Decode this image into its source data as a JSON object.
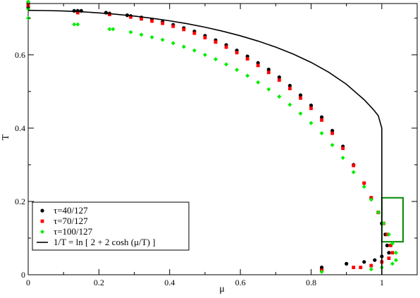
{
  "chart_data": {
    "type": "scatter",
    "xlabel": "μ",
    "ylabel": "T",
    "xlim": [
      0,
      1.1
    ],
    "ylim": [
      0,
      0.74
    ],
    "x_ticks": [
      0,
      0.2,
      0.4,
      0.6,
      0.8,
      1
    ],
    "x_tick_labels": [
      "0",
      "0.2",
      "0.4",
      "0.6",
      "0.8",
      "1"
    ],
    "y_ticks": [
      0,
      0.2,
      0.4,
      0.6
    ],
    "y_tick_labels": [
      "0",
      "0.2",
      "0.4",
      "0.6"
    ],
    "grid": false,
    "legend_position": "bottom-left",
    "series": [
      {
        "name": "τ=40/127",
        "marker": "circle",
        "color": "#000000",
        "points": [
          [
            0,
            0.74
          ],
          [
            0,
            0.73
          ],
          [
            0.13,
            0.72
          ],
          [
            0.14,
            0.72
          ],
          [
            0.15,
            0.72
          ],
          [
            0.22,
            0.715
          ],
          [
            0.23,
            0.713
          ],
          [
            0.28,
            0.708
          ],
          [
            0.29,
            0.706
          ],
          [
            0.32,
            0.702
          ],
          [
            0.35,
            0.696
          ],
          [
            0.38,
            0.69
          ],
          [
            0.41,
            0.682
          ],
          [
            0.44,
            0.673
          ],
          [
            0.47,
            0.664
          ],
          [
            0.5,
            0.652
          ],
          [
            0.53,
            0.64
          ],
          [
            0.56,
            0.627
          ],
          [
            0.59,
            0.612
          ],
          [
            0.62,
            0.596
          ],
          [
            0.65,
            0.578
          ],
          [
            0.68,
            0.56
          ],
          [
            0.71,
            0.539
          ],
          [
            0.74,
            0.516
          ],
          [
            0.77,
            0.49
          ],
          [
            0.8,
            0.462
          ],
          [
            0.83,
            0.43
          ],
          [
            0.86,
            0.393
          ],
          [
            0.89,
            0.35
          ],
          [
            0.92,
            0.3
          ],
          [
            0.95,
            0.25
          ],
          [
            0.97,
            0.21
          ],
          [
            0.99,
            0.17
          ],
          [
            1.0,
            0.14
          ],
          [
            1.01,
            0.11
          ],
          [
            1.015,
            0.08
          ],
          [
            1.02,
            0.06
          ],
          [
            1.0,
            0.05
          ],
          [
            0.98,
            0.04
          ],
          [
            0.95,
            0.035
          ],
          [
            0.9,
            0.03
          ],
          [
            0.83,
            0.02
          ],
          [
            0.83,
            0.015
          ]
        ]
      },
      {
        "name": "τ=70/127",
        "marker": "square",
        "color": "#ff0000",
        "points": [
          [
            0,
            0.735
          ],
          [
            0.14,
            0.715
          ],
          [
            0.23,
            0.71
          ],
          [
            0.29,
            0.703
          ],
          [
            0.32,
            0.698
          ],
          [
            0.35,
            0.692
          ],
          [
            0.38,
            0.686
          ],
          [
            0.41,
            0.678
          ],
          [
            0.44,
            0.669
          ],
          [
            0.47,
            0.659
          ],
          [
            0.5,
            0.647
          ],
          [
            0.53,
            0.635
          ],
          [
            0.56,
            0.621
          ],
          [
            0.59,
            0.606
          ],
          [
            0.62,
            0.589
          ],
          [
            0.65,
            0.571
          ],
          [
            0.68,
            0.552
          ],
          [
            0.71,
            0.531
          ],
          [
            0.74,
            0.508
          ],
          [
            0.77,
            0.482
          ],
          [
            0.8,
            0.454
          ],
          [
            0.83,
            0.422
          ],
          [
            0.86,
            0.386
          ],
          [
            0.89,
            0.345
          ],
          [
            0.92,
            0.298
          ],
          [
            0.95,
            0.25
          ],
          [
            0.97,
            0.21
          ],
          [
            0.99,
            0.17
          ],
          [
            1.005,
            0.14
          ],
          [
            1.015,
            0.11
          ],
          [
            1.025,
            0.08
          ],
          [
            1.03,
            0.06
          ],
          [
            1.02,
            0.045
          ],
          [
            1.0,
            0.035
          ],
          [
            0.97,
            0.025
          ],
          [
            0.94,
            0.02
          ],
          [
            0.92,
            0.02
          ],
          [
            0.83,
            0.012
          ]
        ]
      },
      {
        "name": "τ=100/127",
        "marker": "diamond",
        "color": "#00ee00",
        "points": [
          [
            0,
            0.745
          ],
          [
            0,
            0.725
          ],
          [
            0,
            0.7
          ],
          [
            0.13,
            0.683
          ],
          [
            0.14,
            0.683
          ],
          [
            0.23,
            0.67
          ],
          [
            0.24,
            0.67
          ],
          [
            0.29,
            0.662
          ],
          [
            0.32,
            0.655
          ],
          [
            0.35,
            0.648
          ],
          [
            0.38,
            0.641
          ],
          [
            0.41,
            0.632
          ],
          [
            0.44,
            0.622
          ],
          [
            0.47,
            0.612
          ],
          [
            0.5,
            0.6
          ],
          [
            0.53,
            0.588
          ],
          [
            0.56,
            0.574
          ],
          [
            0.59,
            0.559
          ],
          [
            0.62,
            0.543
          ],
          [
            0.65,
            0.525
          ],
          [
            0.68,
            0.506
          ],
          [
            0.71,
            0.486
          ],
          [
            0.74,
            0.464
          ],
          [
            0.77,
            0.44
          ],
          [
            0.8,
            0.414
          ],
          [
            0.83,
            0.386
          ],
          [
            0.86,
            0.354
          ],
          [
            0.89,
            0.319
          ],
          [
            0.92,
            0.28
          ],
          [
            0.95,
            0.24
          ],
          [
            0.97,
            0.205
          ],
          [
            0.99,
            0.17
          ],
          [
            1.005,
            0.14
          ],
          [
            1.02,
            0.11
          ],
          [
            1.03,
            0.085
          ],
          [
            1.04,
            0.06
          ],
          [
            1.04,
            0.04
          ],
          [
            1.03,
            0.03
          ],
          [
            1.0,
            0.02
          ],
          [
            0.97,
            0.015
          ],
          [
            0.83,
            0.008
          ]
        ]
      },
      {
        "name": "1/T = ln [ 2 + 2 cosh (μ/T) ]",
        "marker": "line",
        "color": "#000000",
        "points": [
          [
            0,
            0.7213
          ],
          [
            0.05,
            0.7208
          ],
          [
            0.1,
            0.7196
          ],
          [
            0.15,
            0.7175
          ],
          [
            0.2,
            0.7145
          ],
          [
            0.25,
            0.7106
          ],
          [
            0.3,
            0.7058
          ],
          [
            0.35,
            0.6999
          ],
          [
            0.4,
            0.693
          ],
          [
            0.45,
            0.6848
          ],
          [
            0.5,
            0.6754
          ],
          [
            0.55,
            0.6645
          ],
          [
            0.6,
            0.652
          ],
          [
            0.65,
            0.6376
          ],
          [
            0.7,
            0.621
          ],
          [
            0.75,
            0.6018
          ],
          [
            0.8,
            0.5793
          ],
          [
            0.85,
            0.5525
          ],
          [
            0.9,
            0.5198
          ],
          [
            0.95,
            0.4777
          ],
          [
            0.97,
            0.4571
          ],
          [
            0.98,
            0.4462
          ],
          [
            0.99,
            0.434
          ],
          [
            1.0,
            0.4
          ],
          [
            1.0,
            0.3
          ],
          [
            1.0,
            0.2
          ],
          [
            1.0,
            0.1
          ],
          [
            1.0,
            0.0
          ]
        ]
      }
    ],
    "annotation_box": {
      "x": [
        1.0,
        1.06
      ],
      "y": [
        0.09,
        0.21
      ],
      "color": "#008800"
    }
  }
}
